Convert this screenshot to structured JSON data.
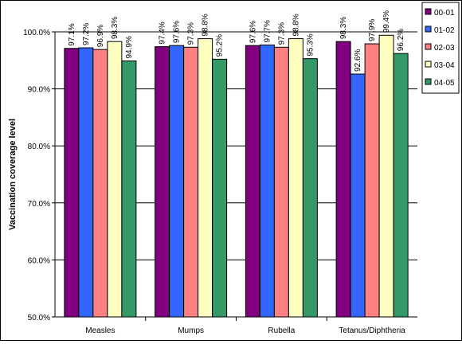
{
  "chart_data": {
    "type": "bar",
    "title": "",
    "xlabel": "",
    "ylabel": "Vaccination coverage level",
    "ylim": [
      50,
      100
    ],
    "y_ticks": [
      "50.0%",
      "60.0%",
      "70.0%",
      "80.0%",
      "90.0%",
      "100.0%"
    ],
    "categories": [
      "Measles",
      "Mumps",
      "Rubella",
      "Tetanus/Diphtheria"
    ],
    "series": [
      {
        "name": "00-01",
        "color": "#800080",
        "values": [
          97.1,
          97.4,
          97.6,
          98.3
        ],
        "labels": [
          "97.1%",
          "97.4%",
          "97.6%",
          "98.3%"
        ]
      },
      {
        "name": "01-02",
        "color": "#3366ff",
        "values": [
          97.2,
          97.6,
          97.7,
          92.6
        ],
        "labels": [
          "97.2%",
          "97.6%",
          "97.7%",
          "92.6%"
        ]
      },
      {
        "name": "02-03",
        "color": "#ff8080",
        "values": [
          96.9,
          97.3,
          97.3,
          97.9
        ],
        "labels": [
          "96.9%",
          "97.3%",
          "97.3%",
          "97.9%"
        ]
      },
      {
        "name": "03-04",
        "color": "#ffffc0",
        "values": [
          98.3,
          98.8,
          98.8,
          99.4
        ],
        "labels": [
          "98.3%",
          "98.8%",
          "98.8%",
          "99.4%"
        ]
      },
      {
        "name": "04-05",
        "color": "#339966",
        "values": [
          94.9,
          95.2,
          95.3,
          96.2
        ],
        "labels": [
          "94.9%",
          "95.2%",
          "95.3%",
          "96.2%"
        ]
      }
    ],
    "grid": true,
    "legend_position": "top-right"
  }
}
